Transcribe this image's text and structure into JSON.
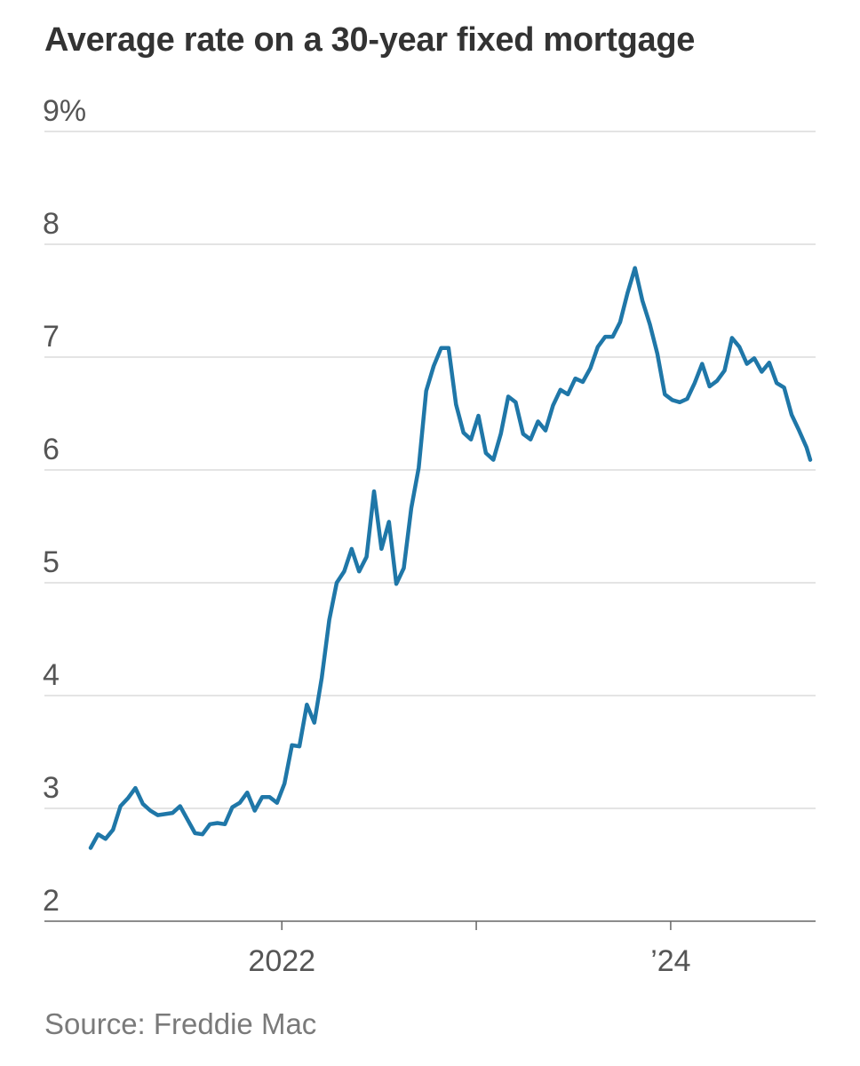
{
  "title": "Average rate on a 30-year fixed mortgage",
  "source": "Source: Freddie Mac",
  "chart_data": {
    "type": "line",
    "title": "Average rate on a 30-year fixed mortgage",
    "xlabel": "",
    "ylabel": "",
    "ylim": [
      2,
      9
    ],
    "xlim": [
      "2021-01-07",
      "2024-09-19"
    ],
    "y_ticks": [
      {
        "value": 9,
        "label": "9%"
      },
      {
        "value": 8,
        "label": "8"
      },
      {
        "value": 7,
        "label": "7"
      },
      {
        "value": 6,
        "label": "6"
      },
      {
        "value": 5,
        "label": "5"
      },
      {
        "value": 4,
        "label": "4"
      },
      {
        "value": 3,
        "label": "3"
      },
      {
        "value": 2,
        "label": "2"
      }
    ],
    "x_ticks": [
      {
        "date": "2022-01-01",
        "label": "2022"
      },
      {
        "date": "2023-01-01",
        "label": ""
      },
      {
        "date": "2024-01-01",
        "label": "’24"
      }
    ],
    "grid": true,
    "legend": "none",
    "series_color": "#1f77a8",
    "series": [
      {
        "name": "",
        "points": [
          [
            "2021-01-07",
            2.65
          ],
          [
            "2021-01-21",
            2.77
          ],
          [
            "2021-02-04",
            2.73
          ],
          [
            "2021-02-18",
            2.81
          ],
          [
            "2021-03-04",
            3.02
          ],
          [
            "2021-03-18",
            3.09
          ],
          [
            "2021-04-01",
            3.18
          ],
          [
            "2021-04-15",
            3.04
          ],
          [
            "2021-04-29",
            2.98
          ],
          [
            "2021-05-13",
            2.94
          ],
          [
            "2021-05-27",
            2.95
          ],
          [
            "2021-06-10",
            2.96
          ],
          [
            "2021-06-24",
            3.02
          ],
          [
            "2021-07-08",
            2.9
          ],
          [
            "2021-07-22",
            2.78
          ],
          [
            "2021-08-05",
            2.77
          ],
          [
            "2021-08-19",
            2.86
          ],
          [
            "2021-09-02",
            2.87
          ],
          [
            "2021-09-16",
            2.86
          ],
          [
            "2021-09-30",
            3.01
          ],
          [
            "2021-10-14",
            3.05
          ],
          [
            "2021-10-28",
            3.14
          ],
          [
            "2021-11-11",
            2.98
          ],
          [
            "2021-11-25",
            3.1
          ],
          [
            "2021-12-09",
            3.1
          ],
          [
            "2021-12-23",
            3.05
          ],
          [
            "2022-01-06",
            3.22
          ],
          [
            "2022-01-20",
            3.56
          ],
          [
            "2022-02-03",
            3.55
          ],
          [
            "2022-02-17",
            3.92
          ],
          [
            "2022-03-03",
            3.76
          ],
          [
            "2022-03-17",
            4.16
          ],
          [
            "2022-03-31",
            4.67
          ],
          [
            "2022-04-14",
            5.0
          ],
          [
            "2022-04-28",
            5.1
          ],
          [
            "2022-05-12",
            5.3
          ],
          [
            "2022-05-26",
            5.1
          ],
          [
            "2022-06-09",
            5.23
          ],
          [
            "2022-06-23",
            5.81
          ],
          [
            "2022-07-07",
            5.3
          ],
          [
            "2022-07-21",
            5.54
          ],
          [
            "2022-08-04",
            4.99
          ],
          [
            "2022-08-18",
            5.13
          ],
          [
            "2022-09-01",
            5.66
          ],
          [
            "2022-09-15",
            6.02
          ],
          [
            "2022-09-29",
            6.7
          ],
          [
            "2022-10-13",
            6.92
          ],
          [
            "2022-10-27",
            7.08
          ],
          [
            "2022-11-10",
            7.08
          ],
          [
            "2022-11-24",
            6.58
          ],
          [
            "2022-12-08",
            6.33
          ],
          [
            "2022-12-22",
            6.27
          ],
          [
            "2023-01-05",
            6.48
          ],
          [
            "2023-01-19",
            6.15
          ],
          [
            "2023-02-02",
            6.09
          ],
          [
            "2023-02-16",
            6.32
          ],
          [
            "2023-03-02",
            6.65
          ],
          [
            "2023-03-16",
            6.6
          ],
          [
            "2023-03-30",
            6.32
          ],
          [
            "2023-04-13",
            6.27
          ],
          [
            "2023-04-27",
            6.43
          ],
          [
            "2023-05-11",
            6.35
          ],
          [
            "2023-05-25",
            6.57
          ],
          [
            "2023-06-08",
            6.71
          ],
          [
            "2023-06-22",
            6.67
          ],
          [
            "2023-07-06",
            6.81
          ],
          [
            "2023-07-20",
            6.78
          ],
          [
            "2023-08-03",
            6.9
          ],
          [
            "2023-08-17",
            7.09
          ],
          [
            "2023-08-31",
            7.18
          ],
          [
            "2023-09-14",
            7.18
          ],
          [
            "2023-09-28",
            7.31
          ],
          [
            "2023-10-12",
            7.57
          ],
          [
            "2023-10-26",
            7.79
          ],
          [
            "2023-11-09",
            7.5
          ],
          [
            "2023-11-23",
            7.29
          ],
          [
            "2023-12-07",
            7.03
          ],
          [
            "2023-12-21",
            6.67
          ],
          [
            "2024-01-04",
            6.62
          ],
          [
            "2024-01-18",
            6.6
          ],
          [
            "2024-02-01",
            6.63
          ],
          [
            "2024-02-15",
            6.77
          ],
          [
            "2024-02-29",
            6.94
          ],
          [
            "2024-03-14",
            6.74
          ],
          [
            "2024-03-28",
            6.79
          ],
          [
            "2024-04-11",
            6.88
          ],
          [
            "2024-04-25",
            7.17
          ],
          [
            "2024-05-09",
            7.09
          ],
          [
            "2024-05-23",
            6.94
          ],
          [
            "2024-06-06",
            6.99
          ],
          [
            "2024-06-20",
            6.87
          ],
          [
            "2024-07-04",
            6.95
          ],
          [
            "2024-07-18",
            6.77
          ],
          [
            "2024-08-01",
            6.73
          ],
          [
            "2024-08-15",
            6.49
          ],
          [
            "2024-08-29",
            6.35
          ],
          [
            "2024-09-12",
            6.2
          ],
          [
            "2024-09-19",
            6.09
          ]
        ]
      }
    ]
  }
}
